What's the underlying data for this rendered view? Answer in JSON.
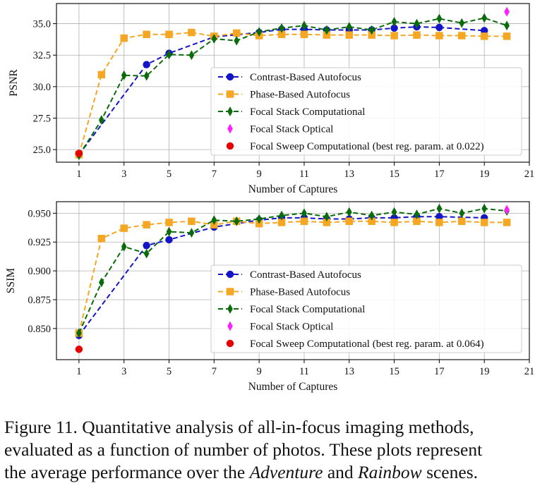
{
  "chart_data": [
    {
      "type": "line",
      "ylabel": "PSNR",
      "xlabel": "Number of Captures",
      "xlim": [
        0,
        21
      ],
      "ylim": [
        24.0,
        36.6
      ],
      "xticks": [
        1,
        3,
        5,
        7,
        9,
        11,
        13,
        15,
        17,
        19,
        21
      ],
      "xtick_labels": [
        "1",
        "3",
        "5",
        "7",
        "9",
        "11",
        "13",
        "15",
        "17",
        "19",
        "21"
      ],
      "yticks": [
        25.0,
        27.5,
        30.0,
        32.5,
        35.0
      ],
      "ytick_labels": [
        "25.0",
        "27.5",
        "30.0",
        "32.5",
        "35.0"
      ],
      "grid": true,
      "legend_position": "center-right",
      "series": [
        {
          "name": "Contrast-Based Autofocus",
          "color": "#1515c8",
          "marker": "circle",
          "linestyle": "dashed",
          "x": [
            1,
            4,
            5,
            7,
            9,
            10,
            11,
            12,
            13,
            14,
            15,
            16,
            17,
            19
          ],
          "y": [
            24.6,
            31.75,
            32.65,
            33.95,
            34.3,
            34.55,
            34.55,
            34.5,
            34.5,
            34.5,
            34.65,
            34.75,
            34.7,
            34.45
          ]
        },
        {
          "name": "Phase-Based Autofocus",
          "color": "#f5a623",
          "marker": "square",
          "linestyle": "dashed",
          "x": [
            1,
            2,
            3,
            4,
            5,
            6,
            7,
            8,
            9,
            10,
            11,
            12,
            13,
            14,
            15,
            16,
            17,
            18,
            19,
            20
          ],
          "y": [
            24.6,
            30.95,
            33.85,
            34.15,
            34.15,
            34.3,
            34.0,
            34.25,
            34.05,
            34.15,
            34.15,
            34.1,
            34.1,
            34.1,
            34.05,
            34.1,
            34.05,
            34.05,
            34.0,
            34.0
          ]
        },
        {
          "name": "Focal Stack Computational",
          "color": "#0a6b0a",
          "marker": "thin_diamond",
          "linestyle": "dashed",
          "x": [
            1,
            2,
            3,
            4,
            5,
            6,
            7,
            8,
            9,
            10,
            11,
            12,
            13,
            14,
            15,
            16,
            17,
            18,
            19,
            20
          ],
          "y": [
            24.55,
            27.35,
            30.9,
            30.85,
            32.55,
            32.5,
            33.8,
            33.65,
            34.35,
            34.65,
            34.85,
            34.5,
            34.75,
            34.5,
            35.15,
            35.0,
            35.4,
            35.05,
            35.45,
            34.85
          ]
        },
        {
          "name": "Focal Stack Optical",
          "color": "#ff1fff",
          "marker": "thin_diamond",
          "linestyle": "none",
          "x": [
            20
          ],
          "y": [
            35.95
          ]
        },
        {
          "name": "Focal Sweep Computational (best reg. param. at 0.022)",
          "color": "#e60000",
          "marker": "circle",
          "linestyle": "none",
          "x": [
            1
          ],
          "y": [
            24.7
          ]
        }
      ]
    },
    {
      "type": "line",
      "ylabel": "SSIM",
      "xlabel": "Number of Captures",
      "xlim": [
        0,
        21
      ],
      "ylim": [
        0.823,
        0.96
      ],
      "xticks": [
        1,
        3,
        5,
        7,
        9,
        11,
        13,
        15,
        17,
        19,
        21
      ],
      "xtick_labels": [
        "1",
        "3",
        "5",
        "7",
        "9",
        "11",
        "13",
        "15",
        "17",
        "19",
        "21"
      ],
      "yticks": [
        0.85,
        0.875,
        0.9,
        0.925,
        0.95
      ],
      "ytick_labels": [
        "0.850",
        "0.875",
        "0.900",
        "0.925",
        "0.950"
      ],
      "grid": true,
      "legend_position": "lower-right",
      "series": [
        {
          "name": "Contrast-Based Autofocus",
          "color": "#1515c8",
          "marker": "circle",
          "linestyle": "dashed",
          "x": [
            1,
            4,
            5,
            7,
            9,
            10,
            11,
            12,
            13,
            14,
            15,
            16,
            17,
            19
          ],
          "y": [
            0.844,
            0.922,
            0.927,
            0.938,
            0.944,
            0.946,
            0.946,
            0.945,
            0.945,
            0.946,
            0.946,
            0.947,
            0.947,
            0.946
          ]
        },
        {
          "name": "Phase-Based Autofocus",
          "color": "#f5a623",
          "marker": "square",
          "linestyle": "dashed",
          "x": [
            1,
            2,
            3,
            4,
            5,
            6,
            7,
            8,
            9,
            10,
            11,
            12,
            13,
            14,
            15,
            16,
            17,
            18,
            19,
            20
          ],
          "y": [
            0.846,
            0.928,
            0.937,
            0.94,
            0.942,
            0.943,
            0.94,
            0.943,
            0.941,
            0.942,
            0.943,
            0.942,
            0.943,
            0.943,
            0.942,
            0.943,
            0.942,
            0.943,
            0.942,
            0.942
          ]
        },
        {
          "name": "Focal Stack Computational",
          "color": "#0a6b0a",
          "marker": "thin_diamond",
          "linestyle": "dashed",
          "x": [
            1,
            2,
            3,
            4,
            5,
            6,
            7,
            8,
            9,
            10,
            11,
            12,
            13,
            14,
            15,
            16,
            17,
            18,
            19,
            20
          ],
          "y": [
            0.846,
            0.89,
            0.921,
            0.915,
            0.934,
            0.933,
            0.944,
            0.943,
            0.945,
            0.948,
            0.95,
            0.947,
            0.951,
            0.948,
            0.951,
            0.949,
            0.954,
            0.95,
            0.954,
            0.952
          ]
        },
        {
          "name": "Focal Stack Optical",
          "color": "#ff1fff",
          "marker": "thin_diamond",
          "linestyle": "none",
          "x": [
            20
          ],
          "y": [
            0.953
          ]
        },
        {
          "name": "Focal Sweep Computational (best reg. param. at 0.064)",
          "color": "#e60000",
          "marker": "circle",
          "linestyle": "none",
          "x": [
            1
          ],
          "y": [
            0.832
          ]
        }
      ]
    }
  ],
  "caption": {
    "line1": "Figure 11. Quantitative analysis of all-in-focus imaging methods,",
    "line2": "evaluated as a function of number of photos. These plots represent",
    "line3_prefix": "the average performance over the ",
    "line3_em1": "Adventure",
    "line3_mid": " and ",
    "line3_em2": "Rainbow",
    "line3_suffix": " scenes."
  }
}
